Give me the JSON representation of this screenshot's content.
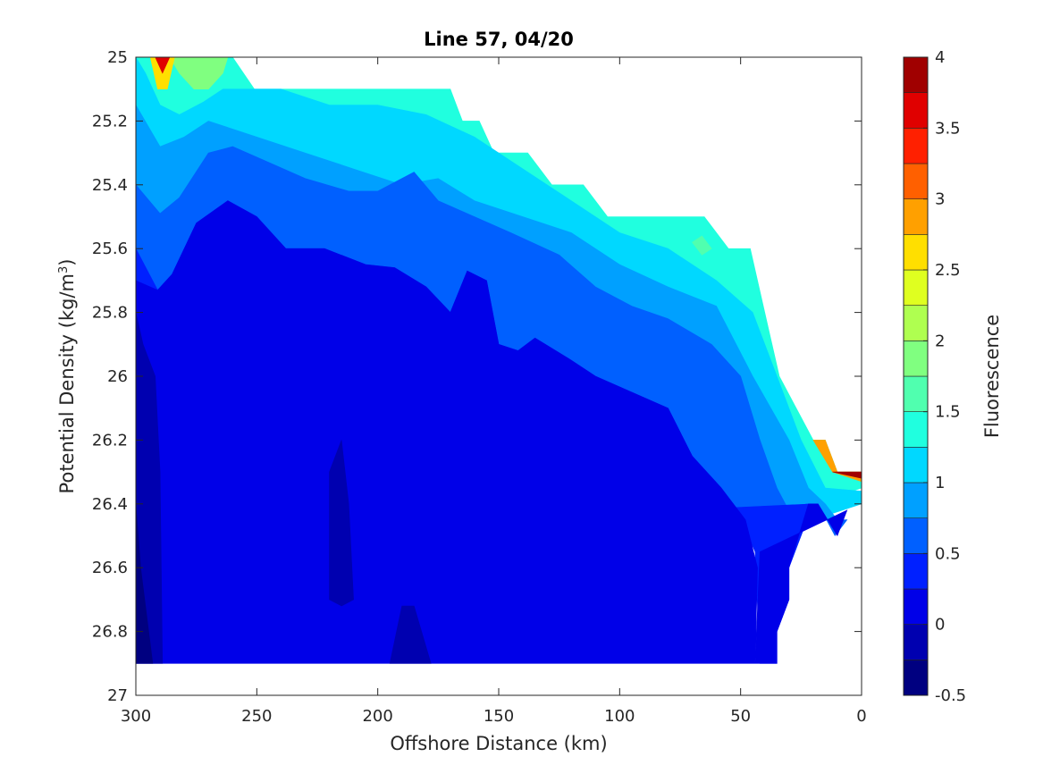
{
  "chart_data": {
    "type": "heatmap",
    "subtype": "filled-contour",
    "title": "Line 57, 04/20",
    "xlabel": "Offshore Distance (km)",
    "ylabel_main": "Potential Density (kg/m",
    "ylabel_sup": "3",
    "ylabel_close": ")",
    "colorbar_label": "Fluorescence",
    "xlim": [
      300,
      0
    ],
    "ylim": [
      25,
      27
    ],
    "y_reversed": true,
    "x_reversed": true,
    "xticks": [
      300,
      250,
      200,
      150,
      100,
      50,
      0
    ],
    "xtick_labels": [
      "300",
      "250",
      "200",
      "150",
      "100",
      "50",
      "0"
    ],
    "yticks": [
      25,
      25.2,
      25.4,
      25.6,
      25.8,
      26,
      26.2,
      26.4,
      26.6,
      26.8,
      27
    ],
    "ytick_labels": [
      "25",
      "25.2",
      "25.4",
      "25.6",
      "25.8",
      "26",
      "26.2",
      "26.4",
      "26.6",
      "26.8",
      "27"
    ],
    "colorbar_ticks": [
      -0.5,
      0,
      0.5,
      1,
      1.5,
      2,
      2.5,
      3,
      3.5,
      4
    ],
    "colorbar_tick_labels": [
      "-0.5",
      "0",
      "0.5",
      "1",
      "1.5",
      "2",
      "2.5",
      "3",
      "3.5",
      "4"
    ],
    "colormap": "jet",
    "levels": [
      {
        "min": -0.5,
        "max": -0.25,
        "color": "#000080"
      },
      {
        "min": -0.25,
        "max": 0,
        "color": "#0000b0"
      },
      {
        "min": 0,
        "max": 0.25,
        "color": "#0000e8"
      },
      {
        "min": 0.25,
        "max": 0.5,
        "color": "#0020ff"
      },
      {
        "min": 0.5,
        "max": 0.75,
        "color": "#0060ff"
      },
      {
        "min": 0.75,
        "max": 1,
        "color": "#00a0ff"
      },
      {
        "min": 1,
        "max": 1.25,
        "color": "#00d8ff"
      },
      {
        "min": 1.25,
        "max": 1.5,
        "color": "#20ffdf"
      },
      {
        "min": 1.5,
        "max": 1.75,
        "color": "#50ffaf"
      },
      {
        "min": 1.75,
        "max": 2,
        "color": "#80ff80"
      },
      {
        "min": 2,
        "max": 2.25,
        "color": "#afff50"
      },
      {
        "min": 2.25,
        "max": 2.5,
        "color": "#dfff20"
      },
      {
        "min": 2.5,
        "max": 2.75,
        "color": "#ffdf00"
      },
      {
        "min": 2.75,
        "max": 3,
        "color": "#ffa000"
      },
      {
        "min": 3,
        "max": 3.25,
        "color": "#ff6000"
      },
      {
        "min": 3.25,
        "max": 3.5,
        "color": "#ff2000"
      },
      {
        "min": 3.5,
        "max": 3.75,
        "color": "#e00000"
      },
      {
        "min": 3.75,
        "max": 4,
        "color": "#a00000"
      }
    ],
    "regions": [
      {
        "level": 7,
        "points": [
          [
            300,
            25
          ],
          [
            260,
            25
          ],
          [
            251,
            25.1
          ],
          [
            170,
            25.1
          ],
          [
            165,
            25.2
          ],
          [
            158,
            25.2
          ],
          [
            152,
            25.3
          ],
          [
            138,
            25.3
          ],
          [
            128,
            25.4
          ],
          [
            115,
            25.4
          ],
          [
            105,
            25.5
          ],
          [
            65,
            25.5
          ],
          [
            55,
            25.6
          ],
          [
            46,
            25.6
          ],
          [
            40,
            25.8
          ],
          [
            34,
            26
          ],
          [
            27,
            26.1
          ],
          [
            20,
            26.2
          ],
          [
            15,
            26.2
          ],
          [
            10,
            26.3
          ],
          [
            0,
            26.3
          ],
          [
            0,
            26.35
          ],
          [
            20,
            26.4
          ],
          [
            40,
            26.5
          ],
          [
            60,
            26.5
          ],
          [
            100,
            26.5
          ],
          [
            150,
            26.5
          ],
          [
            200,
            26.5
          ],
          [
            250,
            26.5
          ],
          [
            300,
            26.5
          ]
        ]
      },
      {
        "level": 9,
        "points": [
          [
            300,
            25
          ],
          [
            286,
            25
          ],
          [
            282,
            25.05
          ],
          [
            276,
            25.1
          ],
          [
            270,
            25.1
          ],
          [
            264,
            25.05
          ],
          [
            262,
            25
          ],
          [
            300,
            25
          ]
        ]
      },
      {
        "level": 8,
        "points": [
          [
            70,
            25.58
          ],
          [
            66,
            25.56
          ],
          [
            62,
            25.6
          ],
          [
            66,
            25.62
          ],
          [
            70,
            25.58
          ]
        ]
      },
      {
        "level": 12,
        "points": [
          [
            294,
            25
          ],
          [
            284,
            25
          ],
          [
            287,
            25.1
          ],
          [
            291,
            25.1
          ],
          [
            294,
            25
          ]
        ]
      },
      {
        "level": 16,
        "points": [
          [
            292,
            25
          ],
          [
            286,
            25
          ],
          [
            289,
            25.05
          ],
          [
            292,
            25
          ]
        ]
      },
      {
        "level": 13,
        "points": [
          [
            20,
            26.2
          ],
          [
            15,
            26.2
          ],
          [
            10,
            26.3
          ],
          [
            0,
            26.3
          ],
          [
            0,
            26.33
          ],
          [
            12,
            26.3
          ],
          [
            20,
            26.2
          ]
        ]
      },
      {
        "level": 17,
        "points": [
          [
            12,
            26.3
          ],
          [
            0,
            26.3
          ],
          [
            0,
            26.32
          ],
          [
            12,
            26.3
          ]
        ]
      },
      {
        "level": 6,
        "points": [
          [
            300,
            25
          ],
          [
            296,
            25.05
          ],
          [
            290,
            25.15
          ],
          [
            282,
            25.18
          ],
          [
            272,
            25.14
          ],
          [
            264,
            25.1
          ],
          [
            240,
            25.1
          ],
          [
            220,
            25.15
          ],
          [
            200,
            25.15
          ],
          [
            180,
            25.18
          ],
          [
            160,
            25.25
          ],
          [
            140,
            25.35
          ],
          [
            120,
            25.45
          ],
          [
            100,
            25.55
          ],
          [
            80,
            25.6
          ],
          [
            60,
            25.7
          ],
          [
            45,
            25.8
          ],
          [
            35,
            26
          ],
          [
            25,
            26.2
          ],
          [
            15,
            26.35
          ],
          [
            0,
            26.36
          ],
          [
            0,
            26.4
          ],
          [
            40,
            26.5
          ],
          [
            300,
            26.5
          ]
        ]
      },
      {
        "level": 5,
        "points": [
          [
            300,
            25.15
          ],
          [
            290,
            25.28
          ],
          [
            280,
            25.25
          ],
          [
            270,
            25.2
          ],
          [
            250,
            25.25
          ],
          [
            230,
            25.3
          ],
          [
            210,
            25.35
          ],
          [
            190,
            25.4
          ],
          [
            175,
            25.38
          ],
          [
            160,
            25.45
          ],
          [
            140,
            25.5
          ],
          [
            120,
            25.55
          ],
          [
            100,
            25.65
          ],
          [
            80,
            25.72
          ],
          [
            60,
            25.78
          ],
          [
            45,
            26
          ],
          [
            30,
            26.2
          ],
          [
            22,
            26.35
          ],
          [
            15,
            26.4
          ],
          [
            10,
            26.45
          ],
          [
            300,
            26.5
          ]
        ]
      },
      {
        "level": 4,
        "points": [
          [
            300,
            25.4
          ],
          [
            290,
            25.49
          ],
          [
            282,
            25.44
          ],
          [
            270,
            25.3
          ],
          [
            260,
            25.28
          ],
          [
            245,
            25.33
          ],
          [
            230,
            25.38
          ],
          [
            212,
            25.42
          ],
          [
            205,
            25.42
          ],
          [
            200,
            25.42
          ],
          [
            190,
            25.38
          ],
          [
            185,
            25.36
          ],
          [
            175,
            25.45
          ],
          [
            160,
            25.5
          ],
          [
            145,
            25.55
          ],
          [
            125,
            25.62
          ],
          [
            110,
            25.72
          ],
          [
            95,
            25.78
          ],
          [
            80,
            25.82
          ],
          [
            62,
            25.9
          ],
          [
            50,
            26
          ],
          [
            42,
            26.2
          ],
          [
            35,
            26.35
          ],
          [
            28,
            26.45
          ],
          [
            23,
            26.4
          ],
          [
            18,
            26.4
          ],
          [
            11,
            26.5
          ],
          [
            6,
            26.45
          ],
          [
            300,
            26.5
          ]
        ]
      },
      {
        "level": 3,
        "points": [
          [
            300,
            25.6
          ],
          [
            291,
            25.73
          ],
          [
            285,
            25.68
          ],
          [
            275,
            25.52
          ],
          [
            262,
            25.45
          ],
          [
            250,
            25.5
          ],
          [
            238,
            25.6
          ],
          [
            222,
            25.6
          ],
          [
            205,
            25.65
          ],
          [
            193,
            25.66
          ],
          [
            180,
            25.72
          ],
          [
            170,
            25.8
          ],
          [
            163,
            25.67
          ],
          [
            155,
            25.7
          ],
          [
            150,
            25.9
          ],
          [
            142,
            25.92
          ],
          [
            135,
            25.88
          ],
          [
            120,
            25.95
          ],
          [
            110,
            26
          ],
          [
            95,
            26.05
          ],
          [
            80,
            26.1
          ],
          [
            70,
            26.25
          ],
          [
            58,
            26.35
          ],
          [
            50,
            26.45
          ],
          [
            44,
            26.55
          ],
          [
            42,
            26.9
          ],
          [
            35,
            26.9
          ],
          [
            35,
            26.8
          ],
          [
            30,
            26.7
          ],
          [
            30,
            26.6
          ],
          [
            25,
            26.5
          ],
          [
            20,
            26.4
          ],
          [
            300,
            26.5
          ],
          [
            300,
            26.9
          ]
        ]
      },
      {
        "level": 2,
        "points": [
          [
            300,
            25.7
          ],
          [
            300,
            26.9
          ],
          [
            35,
            26.9
          ],
          [
            35,
            26.8
          ],
          [
            30,
            26.7
          ],
          [
            30,
            26.6
          ],
          [
            22,
            26.4
          ],
          [
            18,
            26.4
          ],
          [
            10,
            26.5
          ],
          [
            6,
            26.42
          ],
          [
            42,
            26.55
          ],
          [
            44,
            26.9
          ],
          [
            43,
            26.6
          ],
          [
            48,
            26.45
          ],
          [
            58,
            26.35
          ],
          [
            70,
            26.25
          ],
          [
            80,
            26.1
          ],
          [
            95,
            26.05
          ],
          [
            110,
            26
          ],
          [
            120,
            25.95
          ],
          [
            135,
            25.88
          ],
          [
            142,
            25.92
          ],
          [
            150,
            25.9
          ],
          [
            155,
            25.7
          ],
          [
            163,
            25.67
          ],
          [
            170,
            25.8
          ],
          [
            180,
            25.72
          ],
          [
            193,
            25.66
          ],
          [
            205,
            25.65
          ],
          [
            222,
            25.6
          ],
          [
            238,
            25.6
          ],
          [
            250,
            25.5
          ],
          [
            262,
            25.45
          ],
          [
            275,
            25.52
          ],
          [
            285,
            25.68
          ],
          [
            291,
            25.73
          ],
          [
            300,
            25.7
          ]
        ]
      },
      {
        "level": 1,
        "points": [
          [
            300,
            25.8
          ],
          [
            297,
            25.9
          ],
          [
            292,
            26
          ],
          [
            290,
            26.3
          ],
          [
            289,
            26.9
          ],
          [
            300,
            26.9
          ]
        ]
      },
      {
        "level": 1,
        "points": [
          [
            220,
            26.7
          ],
          [
            215,
            26.72
          ],
          [
            210,
            26.7
          ],
          [
            212,
            26.4
          ],
          [
            215,
            26.2
          ],
          [
            220,
            26.3
          ],
          [
            220,
            26.7
          ]
        ]
      },
      {
        "level": 1,
        "points": [
          [
            195,
            26.9
          ],
          [
            190,
            26.72
          ],
          [
            185,
            26.72
          ],
          [
            178,
            26.9
          ],
          [
            195,
            26.9
          ]
        ]
      },
      {
        "level": 0,
        "points": [
          [
            300,
            26.4
          ],
          [
            298,
            26.6
          ],
          [
            293,
            26.9
          ],
          [
            300,
            26.9
          ]
        ]
      }
    ]
  }
}
